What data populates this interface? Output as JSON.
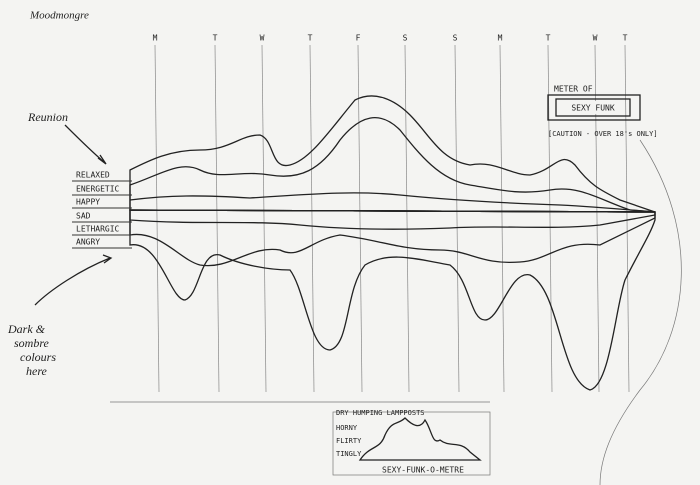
{
  "title": "Moodmongre",
  "days": [
    "M",
    "T",
    "W",
    "T",
    "F",
    "S",
    "S",
    "M",
    "T",
    "W",
    "T"
  ],
  "annotations": {
    "reunion": "Reunion",
    "dark": [
      "Dark &",
      "sombre",
      "colours",
      "here"
    ]
  },
  "moods": [
    "RELAXED",
    "ENERGETIC",
    "HAPPY",
    "SAD",
    "LETHARGIC",
    "ANGRY"
  ],
  "meter": {
    "title": "METER OF",
    "label": "SEXY FUNK",
    "caution": "[CAUTION - OVER 18's ONLY]"
  },
  "funk_o_metre": {
    "levels": [
      "DRY HUMPING LAMPPOSTS",
      "HORNY",
      "FLIRTY",
      "TINGLY"
    ],
    "title": "SEXY-FUNK-O-METRE"
  }
}
